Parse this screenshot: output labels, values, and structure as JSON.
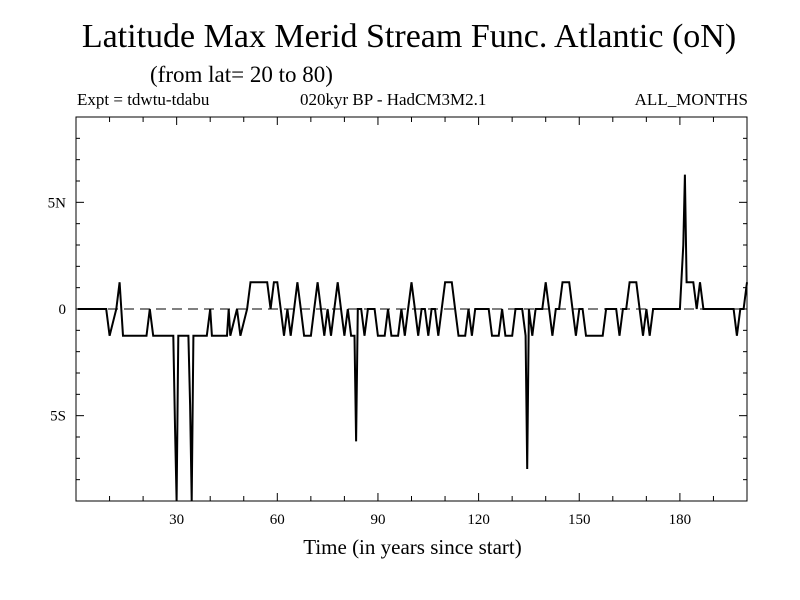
{
  "chart_data": {
    "type": "line",
    "title": "Latitude Max Merid Stream Func. Atlantic (oN)",
    "subtitle": "(from lat= 20 to 80)",
    "header_left": "Expt = tdwtu-tdabu",
    "header_center": "020kyr BP - HadCM3M2.1",
    "header_right": "ALL_MONTHS",
    "xlabel": "Time (in years since start)",
    "ylabel": "",
    "xlim": [
      0,
      200
    ],
    "ylim": [
      -9,
      9
    ],
    "x_ticks": [
      {
        "value": 30,
        "label": "30"
      },
      {
        "value": 60,
        "label": "60"
      },
      {
        "value": 90,
        "label": "90"
      },
      {
        "value": 120,
        "label": "120"
      },
      {
        "value": 150,
        "label": "150"
      },
      {
        "value": 180,
        "label": "180"
      }
    ],
    "y_ticks": [
      {
        "value": 5,
        "label": "5N"
      },
      {
        "value": 0,
        "label": "0"
      },
      {
        "value": -5,
        "label": "5S"
      }
    ],
    "zero_line": "dashed",
    "grid": false,
    "series": [
      {
        "values": [
          [
            0.5,
            0
          ],
          [
            9,
            0
          ],
          [
            10,
            -1.25
          ],
          [
            12,
            0
          ],
          [
            13,
            1.25
          ],
          [
            14,
            -1.25
          ],
          [
            21,
            -1.25
          ],
          [
            22,
            0
          ],
          [
            23,
            -1.25
          ],
          [
            29,
            -1.25
          ],
          [
            29.5,
            -5.5
          ],
          [
            30,
            -9
          ],
          [
            30.5,
            -1.25
          ],
          [
            33.5,
            -1.25
          ],
          [
            34,
            -4.5
          ],
          [
            34.5,
            -9
          ],
          [
            35,
            -1.25
          ],
          [
            39,
            -1.25
          ],
          [
            40,
            0
          ],
          [
            40.5,
            -1.25
          ],
          [
            45,
            -1.25
          ],
          [
            45.5,
            0
          ],
          [
            46,
            -1.25
          ],
          [
            48,
            0
          ],
          [
            49,
            -1.25
          ],
          [
            51,
            0
          ],
          [
            52,
            1.25
          ],
          [
            57,
            1.25
          ],
          [
            58,
            0
          ],
          [
            59,
            1.25
          ],
          [
            60,
            1.25
          ],
          [
            61,
            0
          ],
          [
            62,
            -1.25
          ],
          [
            63,
            0
          ],
          [
            64,
            -1.25
          ],
          [
            65,
            0
          ],
          [
            66,
            1.25
          ],
          [
            67,
            0
          ],
          [
            68,
            -1.25
          ],
          [
            70,
            -1.25
          ],
          [
            71,
            0
          ],
          [
            72,
            1.25
          ],
          [
            73,
            0
          ],
          [
            74,
            -1.25
          ],
          [
            75,
            0
          ],
          [
            76,
            -1.25
          ],
          [
            77,
            0
          ],
          [
            78,
            1.25
          ],
          [
            79,
            0
          ],
          [
            80,
            -1.25
          ],
          [
            81,
            0
          ],
          [
            82,
            -1.25
          ],
          [
            83,
            -1.25
          ],
          [
            83.5,
            -6.2
          ],
          [
            84,
            0
          ],
          [
            85,
            0
          ],
          [
            86,
            -1.25
          ],
          [
            87,
            0
          ],
          [
            89,
            0
          ],
          [
            90,
            -1.25
          ],
          [
            92,
            -1.25
          ],
          [
            93,
            0
          ],
          [
            94,
            -1.25
          ],
          [
            96,
            -1.25
          ],
          [
            97,
            0
          ],
          [
            98,
            -1.25
          ],
          [
            99,
            0
          ],
          [
            100,
            1.25
          ],
          [
            101,
            0
          ],
          [
            102,
            -1.25
          ],
          [
            103,
            0
          ],
          [
            104,
            0
          ],
          [
            105,
            -1.25
          ],
          [
            106,
            0
          ],
          [
            107,
            0
          ],
          [
            108,
            -1.25
          ],
          [
            109,
            0
          ],
          [
            110,
            1.25
          ],
          [
            112,
            1.25
          ],
          [
            113,
            0
          ],
          [
            114,
            -1.25
          ],
          [
            116,
            -1.25
          ],
          [
            117,
            0
          ],
          [
            118,
            -1.25
          ],
          [
            119,
            0
          ],
          [
            123,
            0
          ],
          [
            124,
            -1.25
          ],
          [
            126,
            -1.25
          ],
          [
            127,
            0
          ],
          [
            128,
            -1.25
          ],
          [
            130,
            -1.25
          ],
          [
            131,
            0
          ],
          [
            133,
            0
          ],
          [
            134,
            -1.25
          ],
          [
            134.5,
            -7.5
          ],
          [
            135,
            0
          ],
          [
            136,
            -1.25
          ],
          [
            137,
            0
          ],
          [
            139,
            0
          ],
          [
            140,
            1.25
          ],
          [
            141,
            0
          ],
          [
            142,
            -1.25
          ],
          [
            143,
            0
          ],
          [
            144,
            0
          ],
          [
            145,
            1.25
          ],
          [
            147,
            1.25
          ],
          [
            148,
            0
          ],
          [
            149,
            -1.25
          ],
          [
            150,
            0
          ],
          [
            151,
            0
          ],
          [
            152,
            -1.25
          ],
          [
            157,
            -1.25
          ],
          [
            158,
            0
          ],
          [
            161,
            0
          ],
          [
            162,
            -1.25
          ],
          [
            163,
            0
          ],
          [
            164,
            0
          ],
          [
            165,
            1.25
          ],
          [
            167,
            1.25
          ],
          [
            168,
            0
          ],
          [
            169,
            -1.25
          ],
          [
            170,
            0
          ],
          [
            171,
            -1.25
          ],
          [
            172,
            0
          ],
          [
            180,
            0
          ],
          [
            181,
            3
          ],
          [
            181.5,
            6.3
          ],
          [
            182,
            1.25
          ],
          [
            184,
            1.25
          ],
          [
            185,
            0
          ],
          [
            186,
            1.25
          ],
          [
            187,
            0
          ],
          [
            196,
            0
          ],
          [
            197,
            -1.25
          ],
          [
            198,
            0
          ],
          [
            199,
            0
          ],
          [
            200,
            1.25
          ]
        ]
      }
    ]
  }
}
